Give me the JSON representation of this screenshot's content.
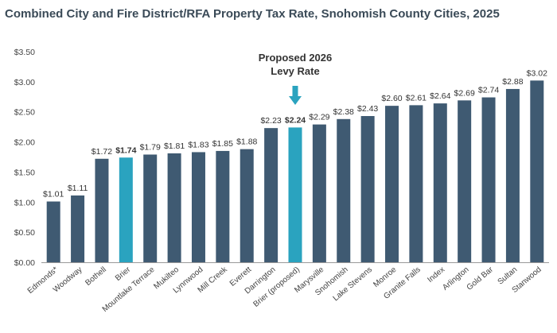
{
  "chart_data": {
    "type": "bar",
    "title": "Combined City and Fire District/RFA Property Tax Rate, Snohomish County Cities, 2025",
    "xlabel": "",
    "ylabel": "",
    "ylim": [
      0,
      3.5
    ],
    "yticks": [
      "$0.00",
      "$0.50",
      "$1.00",
      "$1.50",
      "$2.00",
      "$2.50",
      "$3.00",
      "$3.50"
    ],
    "grid": false,
    "categories": [
      "Edmonds*",
      "Woodway",
      "Bothell",
      "Brier",
      "Mountlake Terrace",
      "Mukilteo",
      "Lynnwood",
      "Mill Creek",
      "Everett",
      "Darrington",
      "Brier (proposed)",
      "Marysville",
      "Snohomish",
      "Lake Stevens",
      "Monroe",
      "Granite Falls",
      "Index",
      "Arlington",
      "Gold Bar",
      "Sultan",
      "Stanwood"
    ],
    "values": [
      1.01,
      1.11,
      1.72,
      1.74,
      1.79,
      1.81,
      1.83,
      1.85,
      1.88,
      2.23,
      2.24,
      2.29,
      2.38,
      2.43,
      2.6,
      2.61,
      2.64,
      2.69,
      2.74,
      2.88,
      3.02
    ],
    "value_labels": [
      "$1.01",
      "$1.11",
      "$1.72",
      "$1.74",
      "$1.79",
      "$1.81",
      "$1.83",
      "$1.85",
      "$1.88",
      "$2.23",
      "$2.24",
      "$2.29",
      "$2.38",
      "$2.43",
      "$2.60",
      "$2.61",
      "$2.64",
      "$2.69",
      "$2.74",
      "$2.88",
      "$3.02"
    ],
    "highlighted": [
      "Brier",
      "Brier (proposed)"
    ],
    "bold_labels": [
      "Brier",
      "Brier (proposed)"
    ],
    "colors": {
      "bar": "#3f5a72",
      "highlight": "#2aa3bf",
      "arrow": "#2aa3bf",
      "axis": "#999999"
    },
    "annotation": {
      "line1": "Proposed 2026",
      "line2": "Levy Rate",
      "target": "Brier (proposed)"
    }
  }
}
